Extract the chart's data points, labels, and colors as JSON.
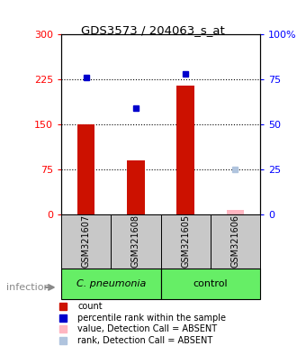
{
  "title": "GDS3573 / 204063_s_at",
  "samples": [
    "GSM321607",
    "GSM321608",
    "GSM321605",
    "GSM321606"
  ],
  "counts": [
    150,
    90,
    215,
    8
  ],
  "percentile_ranks": [
    228,
    178,
    235,
    75
  ],
  "absent_count": 8,
  "absent_rank": 75,
  "absent_sample_idx": 3,
  "left_ylim": [
    0,
    300
  ],
  "left_yticks": [
    0,
    75,
    150,
    225,
    300
  ],
  "right_ytick_labels": [
    "0",
    "25",
    "50",
    "75",
    "100%"
  ],
  "dotted_lines": [
    75,
    150,
    225
  ],
  "bar_color": "#CC1100",
  "dot_color": "#0000CC",
  "absent_val_color": "#FFB6C1",
  "absent_rank_color": "#B0C4DE",
  "bar_width": 0.35,
  "group1_label": "C. pneumonia",
  "group2_label": "control",
  "group_color": "#66EE66",
  "sample_box_color": "#C8C8C8",
  "infection_label": "infection"
}
